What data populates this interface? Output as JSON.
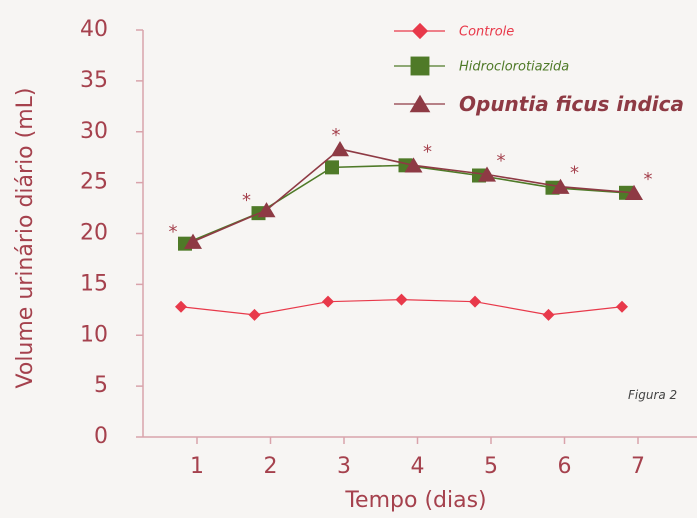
{
  "chart_data": {
    "type": "line",
    "xlabel": "Tempo (dias)",
    "ylabel": "Volume urinário diário (mL)",
    "x": [
      1,
      2,
      3,
      4,
      5,
      6,
      7
    ],
    "ylim": [
      0,
      40
    ],
    "yticks": [
      0,
      5,
      10,
      15,
      20,
      25,
      30,
      35,
      40
    ],
    "grid": false,
    "legend_position": "top-right",
    "caption": "Figura 2",
    "significance_marker": "*",
    "series": [
      {
        "name": "Controle",
        "marker": "diamond",
        "color": "#e8394a",
        "legend_color": "#e8394a",
        "values": [
          12.8,
          12.0,
          13.3,
          13.5,
          13.3,
          12.0,
          12.8
        ]
      },
      {
        "name": "Hidroclorotiazida",
        "marker": "square",
        "color": "#4f7a28",
        "legend_color": "#4f7a28",
        "values": [
          19.0,
          22.0,
          26.5,
          26.7,
          25.7,
          24.5,
          24.0
        ]
      },
      {
        "name": "Opuntia ficus indica",
        "marker": "triangle",
        "color": "#8e3a44",
        "legend_color": "#8e3a44",
        "values": [
          19.2,
          22.3,
          28.3,
          26.7,
          25.8,
          24.6,
          24.0
        ],
        "significant": [
          true,
          true,
          true,
          true,
          true,
          true,
          true
        ]
      }
    ]
  }
}
